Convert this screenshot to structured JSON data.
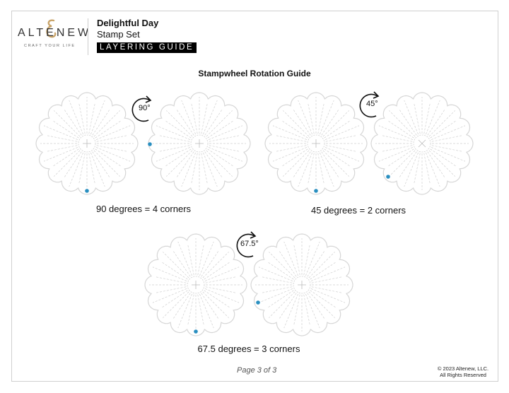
{
  "brand": {
    "name": "ALTENEW",
    "tagline": "CRAFT YOUR LIFE",
    "accent": "#c9a46a"
  },
  "header": {
    "title": "Delightful Day",
    "subtitle": "Stamp Set",
    "badge": "LAYERING GUIDE"
  },
  "heading": "Stampwheel Rotation Guide",
  "groups": [
    {
      "rotation_label": "90°",
      "caption": "90 degrees = 4 corners"
    },
    {
      "rotation_label": "45°",
      "caption": "45 degrees = 2 corners"
    },
    {
      "rotation_label": "67.5°",
      "caption": "67.5 degrees = 3 corners"
    }
  ],
  "marker_color": "#2a8fc0",
  "footer": {
    "page": "Page 3 of 3",
    "copyright": "© 2023 Altenew, LLC.",
    "rights": "All Rights Reserved"
  }
}
